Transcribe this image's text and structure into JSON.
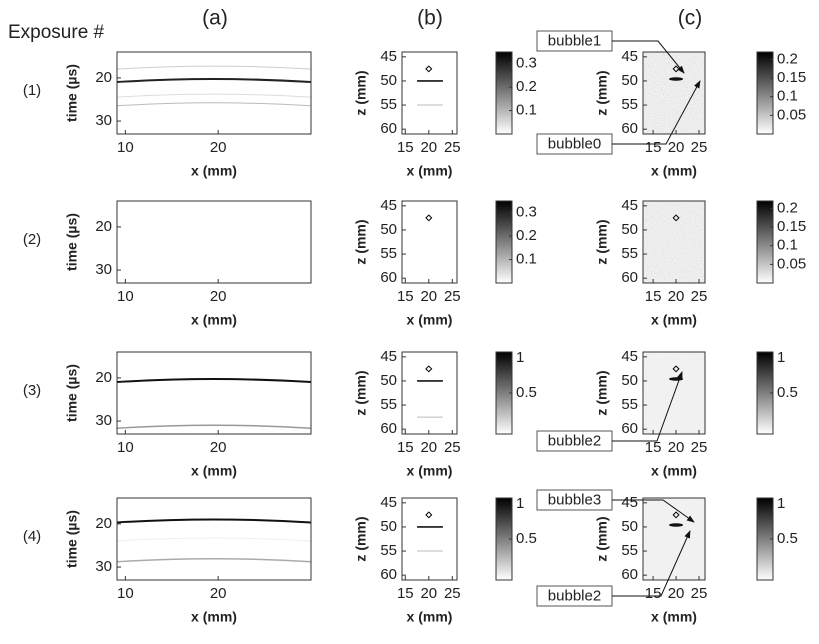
{
  "figure": {
    "row_header": "Exposure #",
    "column_labels": [
      "(a)",
      "(b)",
      "(c)"
    ],
    "panels": {
      "a": {
        "xlabel": "x (mm)",
        "ylabel": "time (µs)",
        "xlim": [
          9.1,
          30
        ],
        "ylim": [
          14,
          33
        ],
        "xticks": [
          10,
          20
        ],
        "yticks": [
          20,
          30
        ]
      },
      "b": {
        "xlabel": "x (mm)",
        "ylabel": "z (mm)",
        "xlim": [
          14.3,
          26
        ],
        "ylim": [
          44,
          61
        ],
        "xticks": [
          15,
          20,
          25
        ],
        "yticks": [
          45,
          50,
          55,
          60
        ]
      },
      "c": {
        "xlabel": "x (mm)",
        "ylabel": "z (mm)",
        "xlim": [
          12.8,
          26.3
        ],
        "ylim": [
          44,
          61
        ],
        "xticks": [
          15,
          20,
          25
        ],
        "yticks": [
          45,
          50,
          55,
          60
        ]
      }
    },
    "rows": [
      {
        "label": "(1)",
        "colorbar_b": {
          "lim": [
            0,
            0.35
          ],
          "ticks": [
            0.1,
            0.2,
            0.3
          ]
        },
        "colorbar_c": {
          "lim": [
            0,
            0.22
          ],
          "ticks": [
            0.05,
            0.1,
            0.15,
            0.2
          ]
        },
        "annotations": [
          "bubble1",
          "bubble0"
        ]
      },
      {
        "label": "(2)",
        "colorbar_b": {
          "lim": [
            0,
            0.35
          ],
          "ticks": [
            0.1,
            0.2,
            0.3
          ]
        },
        "colorbar_c": {
          "lim": [
            0,
            0.22
          ],
          "ticks": [
            0.05,
            0.1,
            0.15,
            0.2
          ]
        }
      },
      {
        "label": "(3)",
        "colorbar_b": {
          "lim": [
            0,
            1
          ],
          "ticks": [
            0.5,
            1
          ]
        },
        "colorbar_c": {
          "lim": [
            0,
            1
          ],
          "ticks": [
            0.5,
            1
          ]
        },
        "annotations": [
          "bubble2"
        ]
      },
      {
        "label": "(4)",
        "colorbar_b": {
          "lim": [
            0,
            1
          ],
          "ticks": [
            0.5,
            1
          ]
        },
        "colorbar_c": {
          "lim": [
            0,
            1
          ],
          "ticks": [
            0.5,
            1
          ]
        },
        "annotations": [
          "bubble3",
          "bubble2"
        ]
      }
    ]
  }
}
